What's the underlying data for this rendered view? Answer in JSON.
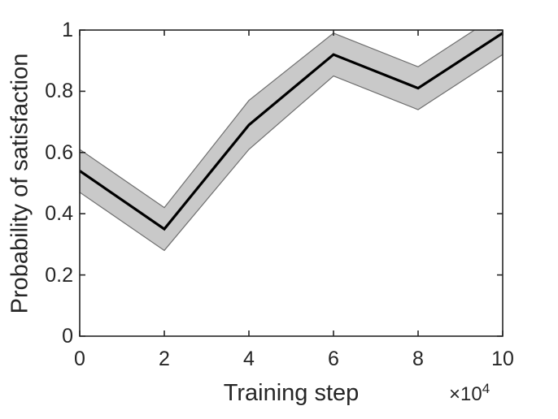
{
  "figure": {
    "background_color": "#ffffff",
    "text_color": "#262626",
    "axis_color": "#262626"
  },
  "chart_data": {
    "type": "line",
    "title": "",
    "xlabel": "Training step",
    "ylabel": "Probability of satisfaction",
    "x_axis_multiplier_base": "×10",
    "x_axis_multiplier_exponent": "4",
    "x_units_note": "x values are in units of 10^4 training steps",
    "xlim": [
      0,
      10
    ],
    "ylim": [
      0,
      1
    ],
    "grid": false,
    "legend": "none",
    "x": [
      0,
      2,
      4,
      6,
      8,
      10
    ],
    "x_tick_labels": [
      "0",
      "2",
      "4",
      "6",
      "8",
      "10"
    ],
    "y_ticks": [
      0,
      0.2,
      0.4,
      0.6,
      0.8,
      1
    ],
    "y_tick_labels": [
      "0",
      "0.2",
      "0.4",
      "0.6",
      "0.8",
      "1"
    ],
    "series": [
      {
        "name": "mean-probability",
        "role": "line",
        "color": "#000000",
        "line_width": 3.2,
        "values": [
          0.54,
          0.35,
          0.69,
          0.92,
          0.81,
          0.99
        ]
      },
      {
        "name": "band-lower",
        "role": "band-lower",
        "values": [
          0.47,
          0.28,
          0.61,
          0.85,
          0.74,
          0.92
        ]
      },
      {
        "name": "band-upper",
        "role": "band-upper",
        "values": [
          0.61,
          0.42,
          0.77,
          0.99,
          0.88,
          1.06
        ]
      }
    ],
    "band_fill": "#c9c9c9",
    "band_edge": "#6e6e6e",
    "band_clipped_at_ylim": true,
    "ticks_mirrored_on_all_sides": true,
    "tick_direction": "in"
  }
}
